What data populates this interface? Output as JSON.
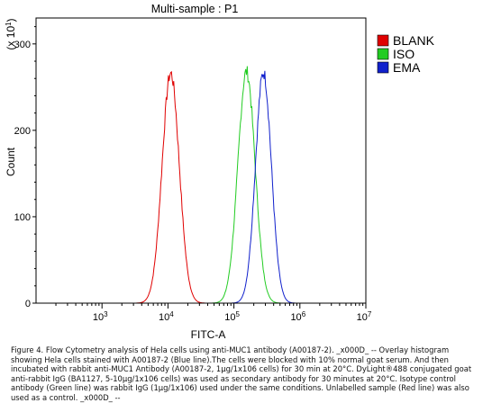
{
  "chart_data": {
    "type": "line",
    "title": "Multi-sample : P1",
    "xlabel": "FITC-A",
    "ylabel": "Count",
    "y_scale_label": "(x 10^1)",
    "x_scale": "log",
    "xlim_exponents": [
      2,
      7
    ],
    "ylim": [
      0,
      330
    ],
    "x_ticks": [
      {
        "base": "10",
        "exp": "3"
      },
      {
        "base": "10",
        "exp": "4"
      },
      {
        "base": "10",
        "exp": "5"
      },
      {
        "base": "10",
        "exp": "6"
      },
      {
        "base": "10",
        "exp": "7"
      }
    ],
    "y_ticks": [
      "0",
      "100",
      "200",
      "300"
    ],
    "legend_placement": "top-right",
    "series": [
      {
        "name": "BLANK",
        "color": "#e00000",
        "peak_x": 11000,
        "peak_y": 266,
        "width": 0.13
      },
      {
        "name": "ISO",
        "color": "#22cc22",
        "peak_x": 155000,
        "peak_y": 268,
        "width": 0.13
      },
      {
        "name": "EMA",
        "color": "#1020cc",
        "peak_x": 280000,
        "peak_y": 267,
        "width": 0.12
      }
    ]
  },
  "caption": "Figure 4. Flow Cytometry analysis of Hela cells using anti-MUC1 antibody (A00187-2). _x000D_ -- Overlay histogram showing Hela cells stained with A00187-2 (Blue line).The cells were blocked with 10% normal goat serum. And then incubated with rabbit anti-MUC1 Antibody (A00187-2, 1μg/1x106 cells) for 30 min at 20°C. DyLight®488 conjugated goat anti-rabbit IgG (BA1127, 5-10μg/1x106 cells) was used as secondary antibody for 30 minutes at 20°C. Isotype control antibody (Green line) was rabbit IgG (1μg/1x106) used under the same conditions. Unlabelled sample (Red line) was also used as a control. _x000D_ --"
}
